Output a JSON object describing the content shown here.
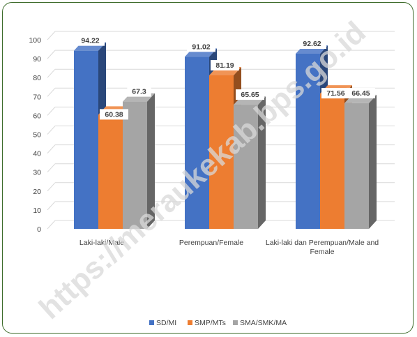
{
  "chart_data": {
    "type": "bar",
    "title": "",
    "xlabel": "",
    "ylabel": "",
    "ylim": [
      0,
      100
    ],
    "yticks": [
      0,
      10,
      20,
      30,
      40,
      50,
      60,
      70,
      80,
      90,
      100
    ],
    "categories": [
      "Laki-laki/Male",
      "Perempuan/Female",
      "Laki-laki dan Perempuan/Male and Female"
    ],
    "series": [
      {
        "name": "SD/MI",
        "values": [
          94.22,
          91.02,
          92.62
        ],
        "color": "#4472c4"
      },
      {
        "name": "SMP/MTs",
        "values": [
          60.38,
          81.19,
          71.56
        ],
        "color": "#ed7d31"
      },
      {
        "name": "SMA/SMK/MA",
        "values": [
          67.3,
          65.65,
          66.45
        ],
        "color": "#a5a5a5"
      }
    ],
    "data_labels": [
      [
        "94.22",
        "60.38",
        "67.3"
      ],
      [
        "91.02",
        "81.19",
        "65.65"
      ],
      [
        "92.62",
        "71.56",
        "66.45"
      ]
    ],
    "grid": true,
    "legend_position": "bottom",
    "watermark": "https://meraukekab.bps.go.id"
  }
}
